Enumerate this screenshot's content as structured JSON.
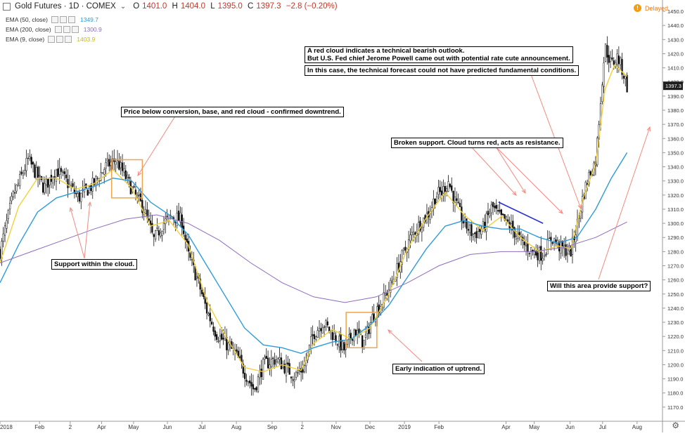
{
  "header": {
    "symbol": "Gold Futures · 1D · COMEX",
    "collapse": "⌄",
    "open_label": "O",
    "open": "1401.0",
    "high_label": "H",
    "high": "1404.0",
    "low_label": "L",
    "low": "1395.0",
    "close_label": "C",
    "close": "1397.3",
    "change": "−2.8 (−0.20%)",
    "delayed": "Delayed"
  },
  "indicators": [
    {
      "label": "EMA (50, close)",
      "value": "1349.7",
      "color": "#2e9bda"
    },
    {
      "label": "EMA (200, close)",
      "value": "1300.9",
      "color": "#8e6bc0"
    },
    {
      "label": "EMA (9, close)",
      "value": "1403.9",
      "color": "#f2d03b"
    }
  ],
  "price_tag": "1397.3",
  "annotations": {
    "cloud_line1": "A red cloud indicates a technical bearish outlook.",
    "cloud_line2": "But U.S. Fed chief Jerome Powell came out with potential rate cute announcement.",
    "cloud_line3": "In this case, the technical forecast could not have predicted fundamental conditions.",
    "downtrend": "Price below conversion, base, and red cloud - confirmed downtrend.",
    "support_cloud": "Support within the cloud.",
    "broken_support": "Broken support. Cloud turns red, acts as resistance.",
    "uptrend": "Early indication of uptrend.",
    "will_support": "Will this area provide support?"
  },
  "chart_data": {
    "type": "candlestick",
    "ylim": [
      1160,
      1455
    ],
    "y_ticks": [
      1170,
      1180,
      1190,
      1200,
      1210,
      1220,
      1230,
      1240,
      1250,
      1260,
      1270,
      1280,
      1290,
      1300,
      1310,
      1320,
      1330,
      1340,
      1350,
      1360,
      1370,
      1380,
      1390,
      1400,
      1410,
      1420,
      1430,
      1440,
      1450
    ],
    "x_ticks": [
      {
        "label": "2018",
        "t": 0
      },
      {
        "label": "Feb",
        "t": 0.063
      },
      {
        "label": "2",
        "t": 0.112
      },
      {
        "label": "Apr",
        "t": 0.162
      },
      {
        "label": "May",
        "t": 0.213
      },
      {
        "label": "Jun",
        "t": 0.267
      },
      {
        "label": "Jul",
        "t": 0.322
      },
      {
        "label": "Aug",
        "t": 0.377
      },
      {
        "label": "Sep",
        "t": 0.434
      },
      {
        "label": "2",
        "t": 0.482
      },
      {
        "label": "Nov",
        "t": 0.536
      },
      {
        "label": "Dec",
        "t": 0.59
      },
      {
        "label": "2019",
        "t": 0.645
      },
      {
        "label": "Feb",
        "t": 0.7
      },
      {
        "label": "Apr",
        "t": 0.807
      },
      {
        "label": "May",
        "t": 0.852
      },
      {
        "label": "Jun",
        "t": 0.909
      },
      {
        "label": "Jul",
        "t": 0.961
      },
      {
        "label": "Aug",
        "t": 1.016
      }
    ],
    "price_path": [
      [
        0,
        1280
      ],
      [
        0.02,
        1318
      ],
      [
        0.045,
        1345
      ],
      [
        0.07,
        1325
      ],
      [
        0.09,
        1338
      ],
      [
        0.105,
        1330
      ],
      [
        0.125,
        1318
      ],
      [
        0.15,
        1328
      ],
      [
        0.168,
        1340
      ],
      [
        0.185,
        1345
      ],
      [
        0.2,
        1333
      ],
      [
        0.215,
        1320
      ],
      [
        0.23,
        1310
      ],
      [
        0.245,
        1288
      ],
      [
        0.26,
        1300
      ],
      [
        0.275,
        1305
      ],
      [
        0.29,
        1302
      ],
      [
        0.3,
        1278
      ],
      [
        0.315,
        1260
      ],
      [
        0.33,
        1238
      ],
      [
        0.345,
        1222
      ],
      [
        0.36,
        1215
      ],
      [
        0.375,
        1208
      ],
      [
        0.39,
        1195
      ],
      [
        0.405,
        1182
      ],
      [
        0.42,
        1200
      ],
      [
        0.44,
        1204
      ],
      [
        0.455,
        1198
      ],
      [
        0.47,
        1192
      ],
      [
        0.485,
        1198
      ],
      [
        0.5,
        1222
      ],
      [
        0.515,
        1230
      ],
      [
        0.53,
        1222
      ],
      [
        0.55,
        1210
      ],
      [
        0.565,
        1225
      ],
      [
        0.58,
        1215
      ],
      [
        0.595,
        1235
      ],
      [
        0.61,
        1245
      ],
      [
        0.625,
        1258
      ],
      [
        0.64,
        1275
      ],
      [
        0.655,
        1290
      ],
      [
        0.67,
        1300
      ],
      [
        0.685,
        1308
      ],
      [
        0.695,
        1320
      ],
      [
        0.705,
        1322
      ],
      [
        0.715,
        1330
      ],
      [
        0.725,
        1316
      ],
      [
        0.74,
        1300
      ],
      [
        0.755,
        1292
      ],
      [
        0.77,
        1296
      ],
      [
        0.785,
        1312
      ],
      [
        0.795,
        1305
      ],
      [
        0.81,
        1300
      ],
      [
        0.82,
        1294
      ],
      [
        0.835,
        1285
      ],
      [
        0.85,
        1280
      ],
      [
        0.865,
        1278
      ],
      [
        0.88,
        1290
      ],
      [
        0.895,
        1282
      ],
      [
        0.91,
        1280
      ],
      [
        0.92,
        1298
      ],
      [
        0.93,
        1320
      ],
      [
        0.94,
        1335
      ],
      [
        0.95,
        1344
      ],
      [
        0.96,
        1400
      ],
      [
        0.965,
        1425
      ],
      [
        0.975,
        1412
      ],
      [
        0.985,
        1418
      ],
      [
        0.995,
        1405
      ],
      [
        1,
        1397
      ]
    ],
    "series": [
      {
        "name": "EMA (9, close)",
        "color": "#f2d03b",
        "points": [
          [
            0,
            1272
          ],
          [
            0.03,
            1312
          ],
          [
            0.06,
            1332
          ],
          [
            0.09,
            1332
          ],
          [
            0.12,
            1324
          ],
          [
            0.15,
            1328
          ],
          [
            0.18,
            1338
          ],
          [
            0.21,
            1325
          ],
          [
            0.24,
            1298
          ],
          [
            0.27,
            1302
          ],
          [
            0.3,
            1285
          ],
          [
            0.33,
            1245
          ],
          [
            0.36,
            1220
          ],
          [
            0.39,
            1198
          ],
          [
            0.42,
            1195
          ],
          [
            0.45,
            1200
          ],
          [
            0.48,
            1196
          ],
          [
            0.5,
            1215
          ],
          [
            0.53,
            1225
          ],
          [
            0.56,
            1218
          ],
          [
            0.59,
            1226
          ],
          [
            0.62,
            1250
          ],
          [
            0.65,
            1282
          ],
          [
            0.68,
            1304
          ],
          [
            0.71,
            1322
          ],
          [
            0.74,
            1306
          ],
          [
            0.77,
            1295
          ],
          [
            0.8,
            1305
          ],
          [
            0.83,
            1290
          ],
          [
            0.86,
            1280
          ],
          [
            0.89,
            1284
          ],
          [
            0.91,
            1282
          ],
          [
            0.93,
            1318
          ],
          [
            0.95,
            1342
          ],
          [
            0.965,
            1395
          ],
          [
            0.98,
            1412
          ],
          [
            1,
            1404
          ]
        ]
      },
      {
        "name": "EMA (50, close)",
        "color": "#2e9bda",
        "points": [
          [
            0,
            1258
          ],
          [
            0.03,
            1285
          ],
          [
            0.06,
            1308
          ],
          [
            0.09,
            1318
          ],
          [
            0.12,
            1322
          ],
          [
            0.15,
            1326
          ],
          [
            0.18,
            1332
          ],
          [
            0.21,
            1330
          ],
          [
            0.24,
            1315
          ],
          [
            0.27,
            1306
          ],
          [
            0.3,
            1292
          ],
          [
            0.33,
            1270
          ],
          [
            0.36,
            1248
          ],
          [
            0.39,
            1226
          ],
          [
            0.42,
            1214
          ],
          [
            0.45,
            1212
          ],
          [
            0.48,
            1208
          ],
          [
            0.5,
            1212
          ],
          [
            0.53,
            1216
          ],
          [
            0.56,
            1218
          ],
          [
            0.59,
            1228
          ],
          [
            0.62,
            1242
          ],
          [
            0.65,
            1262
          ],
          [
            0.68,
            1282
          ],
          [
            0.71,
            1298
          ],
          [
            0.74,
            1302
          ],
          [
            0.77,
            1298
          ],
          [
            0.8,
            1296
          ],
          [
            0.83,
            1296
          ],
          [
            0.86,
            1290
          ],
          [
            0.89,
            1286
          ],
          [
            0.92,
            1290
          ],
          [
            0.95,
            1310
          ],
          [
            0.975,
            1332
          ],
          [
            1,
            1350
          ]
        ]
      },
      {
        "name": "EMA (200, close)",
        "color": "#8e6bc0",
        "points": [
          [
            0,
            1272
          ],
          [
            0.05,
            1280
          ],
          [
            0.1,
            1288
          ],
          [
            0.15,
            1296
          ],
          [
            0.2,
            1303
          ],
          [
            0.25,
            1306
          ],
          [
            0.3,
            1300
          ],
          [
            0.35,
            1288
          ],
          [
            0.4,
            1272
          ],
          [
            0.45,
            1258
          ],
          [
            0.5,
            1248
          ],
          [
            0.55,
            1244
          ],
          [
            0.6,
            1248
          ],
          [
            0.65,
            1258
          ],
          [
            0.7,
            1270
          ],
          [
            0.75,
            1278
          ],
          [
            0.8,
            1280
          ],
          [
            0.85,
            1280
          ],
          [
            0.9,
            1283
          ],
          [
            0.95,
            1290
          ],
          [
            1,
            1301
          ]
        ]
      }
    ],
    "trendline": [
      [
        0.795,
        1315
      ],
      [
        0.866,
        1300
      ]
    ],
    "boxes": [
      {
        "t0": 0.178,
        "t1": 0.227,
        "p0": 1318,
        "p1": 1345,
        "color": "#f0a44c"
      },
      {
        "t0": 0.552,
        "t1": 0.601,
        "p0": 1212,
        "p1": 1237,
        "color": "#f0a44c"
      }
    ]
  }
}
